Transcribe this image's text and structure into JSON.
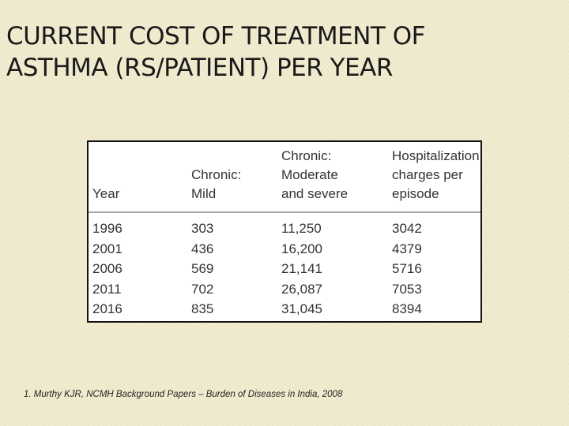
{
  "title": {
    "line1": "CURRENT COST OF TREATMENT OF",
    "line2": "ASTHMA (RS/PATIENT) PER YEAR"
  },
  "table": {
    "headers": [
      {
        "lines": [
          "Year"
        ]
      },
      {
        "lines": [
          "Chronic:",
          "Mild"
        ]
      },
      {
        "lines": [
          "Chronic:",
          "Moderate",
          "and severe"
        ]
      },
      {
        "lines": [
          "Hospitalization",
          "charges per",
          "episode"
        ]
      }
    ],
    "rows": [
      [
        "1996",
        "303",
        "11,250",
        "3042"
      ],
      [
        "2001",
        "436",
        "16,200",
        "4379"
      ],
      [
        "2006",
        "569",
        "21,141",
        "5716"
      ],
      [
        "2011",
        "702",
        "26,087",
        "7053"
      ],
      [
        "2016",
        "835",
        "31,045",
        "8394"
      ]
    ]
  },
  "footnote": "1. Murthy KJR, NCMH Background Papers – Burden of Diseases in India, 2008"
}
